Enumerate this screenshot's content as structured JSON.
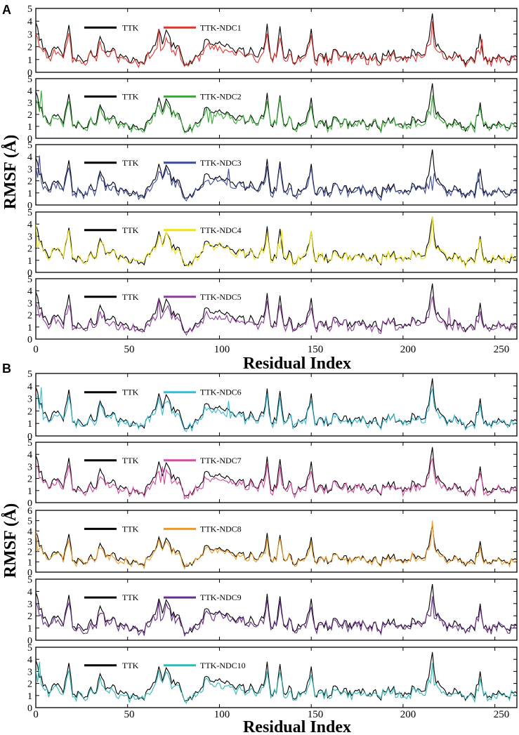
{
  "figure": {
    "panel_labels": [
      "A",
      "B"
    ],
    "ylabel": "RMSF (Å)",
    "xlabel": "Residual Index",
    "x_tick_labels": [
      "0",
      "50",
      "100",
      "150",
      "200",
      "250"
    ],
    "reference_name": "TTK",
    "reference_color": "#000000"
  },
  "chart_data": {
    "type": "line",
    "x_range": [
      0,
      262
    ],
    "x_ticks": [
      0,
      50,
      100,
      150,
      200,
      250
    ],
    "reference_anchors": [
      [
        0,
        3.9
      ],
      [
        2,
        2.5
      ],
      [
        5,
        1.9
      ],
      [
        8,
        1.3
      ],
      [
        12,
        2.0
      ],
      [
        15,
        1.2
      ],
      [
        18,
        3.7
      ],
      [
        20,
        1.1
      ],
      [
        24,
        1.2
      ],
      [
        27,
        0.9
      ],
      [
        30,
        1.7
      ],
      [
        33,
        1.3
      ],
      [
        35,
        2.8
      ],
      [
        38,
        1.5
      ],
      [
        42,
        1.9
      ],
      [
        45,
        1.1
      ],
      [
        49,
        1.3
      ],
      [
        52,
        0.8
      ],
      [
        55,
        1.0
      ],
      [
        58,
        0.8
      ],
      [
        62,
        1.5
      ],
      [
        65,
        2.1
      ],
      [
        67,
        3.4
      ],
      [
        69,
        2.2
      ],
      [
        71,
        3.3
      ],
      [
        74,
        2.0
      ],
      [
        77,
        2.1
      ],
      [
        80,
        1.0
      ],
      [
        83,
        0.6
      ],
      [
        86,
        1.0
      ],
      [
        90,
        1.6
      ],
      [
        93,
        2.6
      ],
      [
        95,
        2.2
      ],
      [
        98,
        2.3
      ],
      [
        100,
        2.4
      ],
      [
        103,
        2.0
      ],
      [
        106,
        1.9
      ],
      [
        109,
        1.5
      ],
      [
        112,
        1.8
      ],
      [
        115,
        1.4
      ],
      [
        118,
        1.7
      ],
      [
        121,
        1.2
      ],
      [
        124,
        1.8
      ],
      [
        126,
        3.8
      ],
      [
        128,
        1.1
      ],
      [
        131,
        1.2
      ],
      [
        133,
        3.6
      ],
      [
        135,
        1.2
      ],
      [
        138,
        1.8
      ],
      [
        141,
        0.7
      ],
      [
        144,
        1.1
      ],
      [
        147,
        1.4
      ],
      [
        150,
        3.4
      ],
      [
        152,
        1.0
      ],
      [
        156,
        1.4
      ],
      [
        160,
        1.0
      ],
      [
        163,
        1.8
      ],
      [
        166,
        1.2
      ],
      [
        169,
        1.6
      ],
      [
        172,
        1.0
      ],
      [
        176,
        1.5
      ],
      [
        180,
        1.0
      ],
      [
        184,
        1.4
      ],
      [
        187,
        0.8
      ],
      [
        190,
        1.3
      ],
      [
        194,
        1.5
      ],
      [
        198,
        1.2
      ],
      [
        202,
        1.1
      ],
      [
        206,
        1.7
      ],
      [
        209,
        1.5
      ],
      [
        212,
        1.4
      ],
      [
        214,
        2.5
      ],
      [
        216,
        4.6
      ],
      [
        218,
        2.0
      ],
      [
        221,
        1.7
      ],
      [
        224,
        1.0
      ],
      [
        228,
        1.6
      ],
      [
        232,
        0.9
      ],
      [
        236,
        1.0
      ],
      [
        239,
        0.8
      ],
      [
        242,
        3.0
      ],
      [
        244,
        1.0
      ],
      [
        248,
        0.8
      ],
      [
        252,
        1.4
      ],
      [
        256,
        0.9
      ],
      [
        260,
        1.2
      ],
      [
        262,
        1.2
      ]
    ],
    "series": [
      {
        "panel": "A",
        "name": "TTK-NDC1",
        "color": "#e8322d",
        "ylim": [
          0,
          5
        ],
        "scale": 0.78,
        "seed": 11,
        "spikes": [
          [
            67,
            3.4
          ],
          [
            216,
            4.0
          ],
          [
            243,
            2.6
          ]
        ]
      },
      {
        "panel": "A",
        "name": "TTK-NDC2",
        "color": "#35b034",
        "ylim": [
          0,
          5
        ],
        "scale": 0.85,
        "seed": 23,
        "spikes": [
          [
            3,
            4.0
          ],
          [
            95,
            2.4
          ],
          [
            216,
            3.6
          ]
        ]
      },
      {
        "panel": "A",
        "name": "TTK-NDC3",
        "color": "#3b4a9e",
        "ylim": [
          0,
          5
        ],
        "scale": 0.82,
        "seed": 37,
        "spikes": [
          [
            2,
            4.1
          ],
          [
            105,
            3.0
          ],
          [
            215,
            2.4
          ],
          [
            241,
            2.7
          ]
        ]
      },
      {
        "panel": "A",
        "name": "TTK-NDC4",
        "color": "#f2e40c",
        "ylim": [
          0,
          5
        ],
        "scale": 0.9,
        "seed": 41,
        "spikes": [
          [
            0,
            4.0
          ],
          [
            134,
            3.5
          ],
          [
            216,
            4.6
          ]
        ]
      },
      {
        "panel": "A",
        "name": "TTK-NDC5",
        "color": "#8e3a9f",
        "ylim": [
          0,
          5
        ],
        "scale": 0.78,
        "seed": 53,
        "spikes": [
          [
            67,
            3.4
          ],
          [
            225,
            2.6
          ]
        ]
      },
      {
        "panel": "B",
        "name": "TTK-NDC6",
        "color": "#33bdd6",
        "ylim": [
          0,
          5
        ],
        "scale": 0.82,
        "seed": 61,
        "spikes": [
          [
            3,
            3.9
          ],
          [
            105,
            2.8
          ]
        ]
      },
      {
        "panel": "B",
        "name": "TTK-NDC7",
        "color": "#d84aa2",
        "ylim": [
          0,
          5
        ],
        "scale": 0.8,
        "seed": 71,
        "spikes": [
          [
            69,
            3.0
          ],
          [
            133,
            3.0
          ]
        ]
      },
      {
        "panel": "B",
        "name": "TTK-NDC8",
        "color": "#f39a1c",
        "ylim": [
          0,
          6
        ],
        "scale": 0.85,
        "seed": 83,
        "spikes": [
          [
            0,
            4.0
          ],
          [
            126,
            3.3
          ],
          [
            216,
            5.0
          ]
        ]
      },
      {
        "panel": "B",
        "name": "TTK-NDC9",
        "color": "#6a2c8e",
        "ylim": [
          0,
          5
        ],
        "scale": 0.82,
        "seed": 97,
        "spikes": [
          [
            67,
            3.2
          ],
          [
            216,
            3.6
          ]
        ]
      },
      {
        "panel": "B",
        "name": "TTK-NDC10",
        "color": "#2bbab7",
        "ylim": [
          0,
          5
        ],
        "scale": 0.8,
        "seed": 101,
        "spikes": [
          [
            2,
            3.8
          ],
          [
            216,
            3.7
          ]
        ]
      }
    ]
  }
}
